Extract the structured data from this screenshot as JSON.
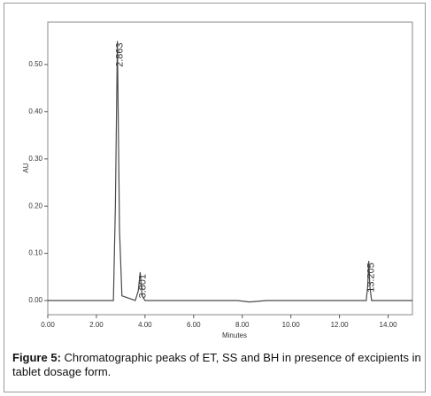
{
  "chart_data": {
    "type": "line",
    "x_label": "Minutes",
    "y_label": "AU",
    "xlim": [
      0,
      15
    ],
    "ylim": [
      -0.03,
      0.59
    ],
    "xticks": [
      {
        "value": 0,
        "label": "0.00"
      },
      {
        "value": 2,
        "label": "2.00"
      },
      {
        "value": 4,
        "label": "4.00"
      },
      {
        "value": 6,
        "label": "6.00"
      },
      {
        "value": 8,
        "label": "8.00"
      },
      {
        "value": 10,
        "label": "10.00"
      },
      {
        "value": 12,
        "label": "12.00"
      },
      {
        "value": 14,
        "label": "14.00"
      }
    ],
    "yticks": [
      {
        "value": 0,
        "label": "0.00"
      },
      {
        "value": 0.1,
        "label": "0.10"
      },
      {
        "value": 0.2,
        "label": "0.20"
      },
      {
        "value": 0.3,
        "label": "0.30"
      },
      {
        "value": 0.4,
        "label": "0.40"
      },
      {
        "value": 0.5,
        "label": "0.50"
      }
    ],
    "series": [
      {
        "color": "#4a4a4a",
        "x": [
          0,
          2.7,
          2.78,
          2.863,
          2.95,
          3.05,
          3.6,
          3.72,
          3.801,
          3.88,
          4.0,
          7.8,
          8.3,
          9.0,
          13.1,
          13.16,
          13.205,
          13.25,
          13.32,
          15
        ],
        "values": [
          0,
          0,
          0.2,
          0.55,
          0.15,
          0.01,
          0,
          0.02,
          0.06,
          0.01,
          0,
          0,
          -0.003,
          0,
          0,
          0.03,
          0.084,
          0.03,
          0,
          0
        ]
      }
    ],
    "annotations": [
      {
        "text": "2.863",
        "x": 2.863,
        "y": 0.55
      },
      {
        "text": "3.801",
        "x": 3.801,
        "y": 0.06
      },
      {
        "text": "13.205",
        "x": 13.205,
        "y": 0.084
      }
    ]
  },
  "caption": {
    "label": "Figure 5:",
    "text": "Chromatographic peaks of ET, SS and BH in presence of excipients in tablet dosage form."
  }
}
